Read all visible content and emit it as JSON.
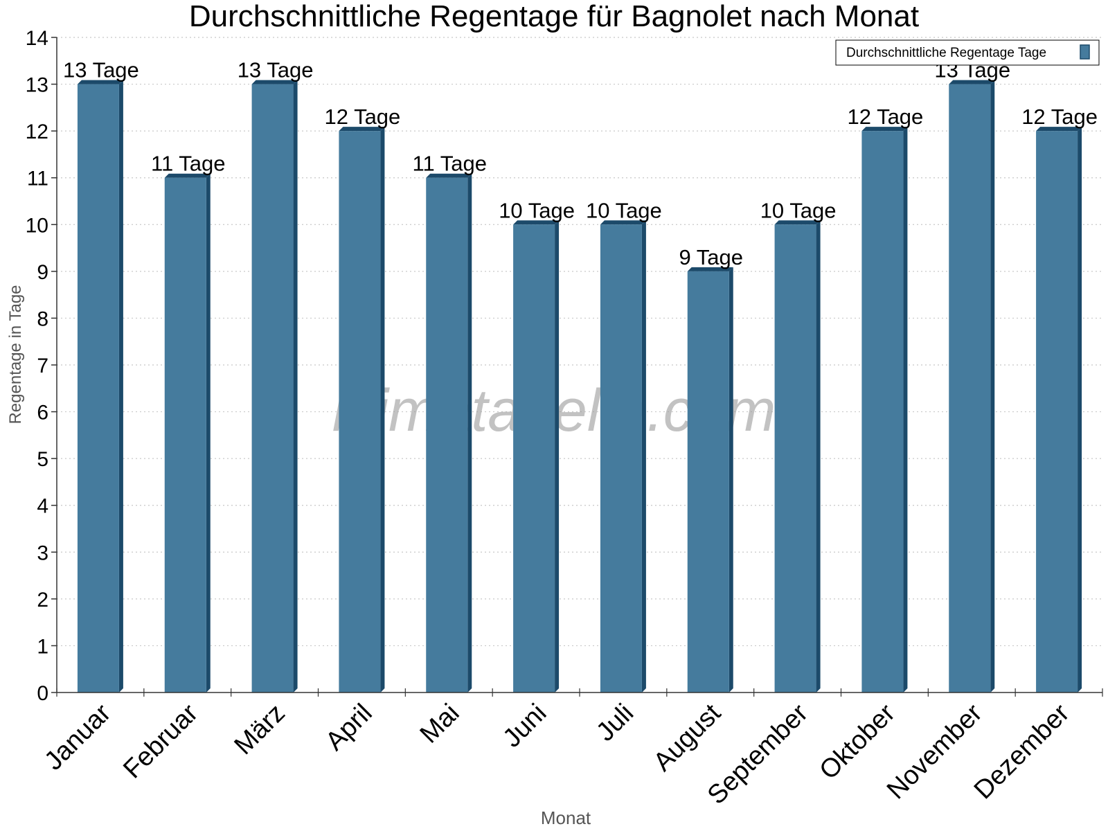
{
  "chart_data": {
    "type": "bar",
    "title": "Durchschnittliche Regentage für Bagnolet nach Monat",
    "xlabel": "Monat",
    "ylabel": "Regentage in Tage",
    "categories": [
      "Januar",
      "Februar",
      "März",
      "April",
      "Mai",
      "Juni",
      "Juli",
      "August",
      "September",
      "Oktober",
      "November",
      "Dezember"
    ],
    "series": [
      {
        "name": "Durchschnittliche Regentage Tage",
        "values": [
          13,
          11,
          13,
          12,
          11,
          10,
          10,
          9,
          10,
          12,
          13,
          12
        ],
        "labels": [
          "13 Tage",
          "11 Tage",
          "13 Tage",
          "12 Tage",
          "11 Tage",
          "10 Tage",
          "10 Tage",
          "9 Tage",
          "10 Tage",
          "12 Tage",
          "13 Tage",
          "12 Tage"
        ],
        "color": "#457b9d"
      }
    ],
    "ylim": [
      0,
      14
    ],
    "yticks": [
      0,
      1,
      2,
      3,
      4,
      5,
      6,
      7,
      8,
      9,
      10,
      11,
      12,
      13,
      14
    ],
    "grid": true,
    "legend_position": "top-right",
    "watermark": "klimatabelle.com"
  },
  "colors": {
    "bar": "#457b9d",
    "bar_side": "#1c4a6a",
    "bar_top": "#1c4a6a",
    "grid": "#c8c8c8",
    "axis": "#333333"
  }
}
